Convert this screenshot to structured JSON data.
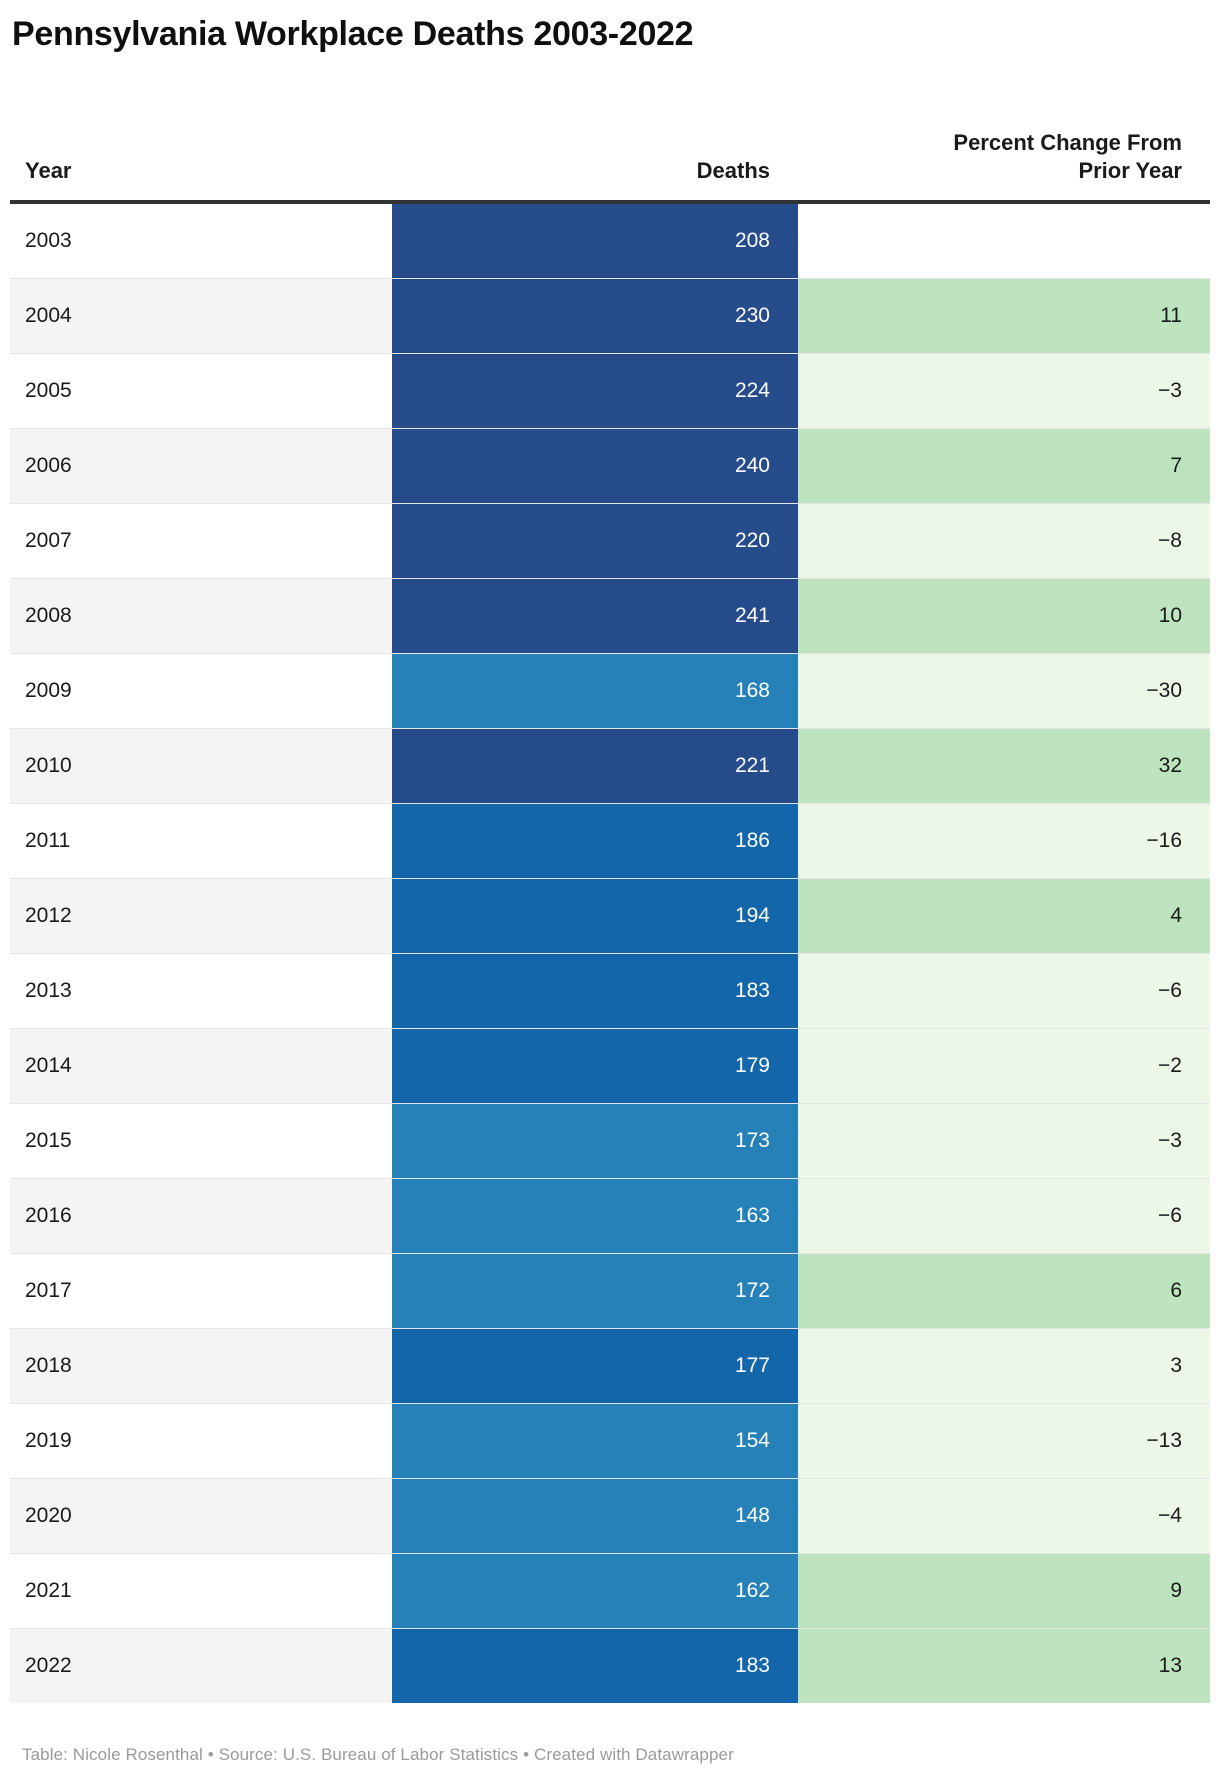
{
  "title": "Pennsylvania Workplace Deaths 2003-2022",
  "table": {
    "columns": [
      "Year",
      "Deaths",
      "Percent Change From Prior Year"
    ],
    "rows": [
      {
        "year": "2003",
        "deaths": "208",
        "change": "",
        "deaths_shade": "navy",
        "change_shade": "none"
      },
      {
        "year": "2004",
        "deaths": "230",
        "change": "11",
        "deaths_shade": "navy",
        "change_shade": "pos"
      },
      {
        "year": "2005",
        "deaths": "224",
        "change": "−3",
        "deaths_shade": "navy",
        "change_shade": "neg"
      },
      {
        "year": "2006",
        "deaths": "240",
        "change": "7",
        "deaths_shade": "navy",
        "change_shade": "pos"
      },
      {
        "year": "2007",
        "deaths": "220",
        "change": "−8",
        "deaths_shade": "navy",
        "change_shade": "neg"
      },
      {
        "year": "2008",
        "deaths": "241",
        "change": "10",
        "deaths_shade": "navy",
        "change_shade": "pos"
      },
      {
        "year": "2009",
        "deaths": "168",
        "change": "−30",
        "deaths_shade": "light",
        "change_shade": "neg"
      },
      {
        "year": "2010",
        "deaths": "221",
        "change": "32",
        "deaths_shade": "navy",
        "change_shade": "pos"
      },
      {
        "year": "2011",
        "deaths": "186",
        "change": "−16",
        "deaths_shade": "mid",
        "change_shade": "neg"
      },
      {
        "year": "2012",
        "deaths": "194",
        "change": "4",
        "deaths_shade": "mid",
        "change_shade": "pos"
      },
      {
        "year": "2013",
        "deaths": "183",
        "change": "−6",
        "deaths_shade": "mid",
        "change_shade": "neg"
      },
      {
        "year": "2014",
        "deaths": "179",
        "change": "−2",
        "deaths_shade": "mid",
        "change_shade": "neg"
      },
      {
        "year": "2015",
        "deaths": "173",
        "change": "−3",
        "deaths_shade": "light",
        "change_shade": "neg"
      },
      {
        "year": "2016",
        "deaths": "163",
        "change": "−6",
        "deaths_shade": "light",
        "change_shade": "neg"
      },
      {
        "year": "2017",
        "deaths": "172",
        "change": "6",
        "deaths_shade": "light",
        "change_shade": "pos"
      },
      {
        "year": "2018",
        "deaths": "177",
        "change": "3",
        "deaths_shade": "mid",
        "change_shade": "neg"
      },
      {
        "year": "2019",
        "deaths": "154",
        "change": "−13",
        "deaths_shade": "light",
        "change_shade": "neg"
      },
      {
        "year": "2020",
        "deaths": "148",
        "change": "−4",
        "deaths_shade": "light",
        "change_shade": "neg"
      },
      {
        "year": "2021",
        "deaths": "162",
        "change": "9",
        "deaths_shade": "light",
        "change_shade": "pos"
      },
      {
        "year": "2022",
        "deaths": "183",
        "change": "13",
        "deaths_shade": "mid",
        "change_shade": "pos"
      }
    ]
  },
  "palette": {
    "deaths": {
      "navy": "#264c8c",
      "mid": "#1266a9",
      "light": "#2681b9"
    },
    "change": {
      "pos": "#bde4be",
      "neg": "#edf7e8",
      "none": "#ffffff"
    },
    "row_band": "#f4f4f4",
    "header_rule": "#333333"
  },
  "footer": "Table: Nicole Rosenthal • Source: U.S. Bureau of Labor Statistics • Created with Datawrapper",
  "chart_data": {
    "type": "table",
    "title": "Pennsylvania Workplace Deaths 2003-2022",
    "columns": [
      "Year",
      "Deaths",
      "Percent Change From Prior Year"
    ],
    "years": [
      2003,
      2004,
      2005,
      2006,
      2007,
      2008,
      2009,
      2010,
      2011,
      2012,
      2013,
      2014,
      2015,
      2016,
      2017,
      2018,
      2019,
      2020,
      2021,
      2022
    ],
    "deaths": [
      208,
      230,
      224,
      240,
      220,
      241,
      168,
      221,
      186,
      194,
      183,
      179,
      173,
      163,
      172,
      177,
      154,
      148,
      162,
      183
    ],
    "percent_change": [
      null,
      11,
      -3,
      7,
      -8,
      10,
      -30,
      32,
      -16,
      4,
      -6,
      -2,
      -3,
      -6,
      6,
      3,
      -13,
      -4,
      9,
      13
    ],
    "layout_hints": {
      "deaths_color_scale": "stepped blues, darker = more deaths",
      "change_color_scale": "green, medium = larger positive change, pale = small/negative",
      "year_rows": "alternating white / light gray bands"
    }
  }
}
